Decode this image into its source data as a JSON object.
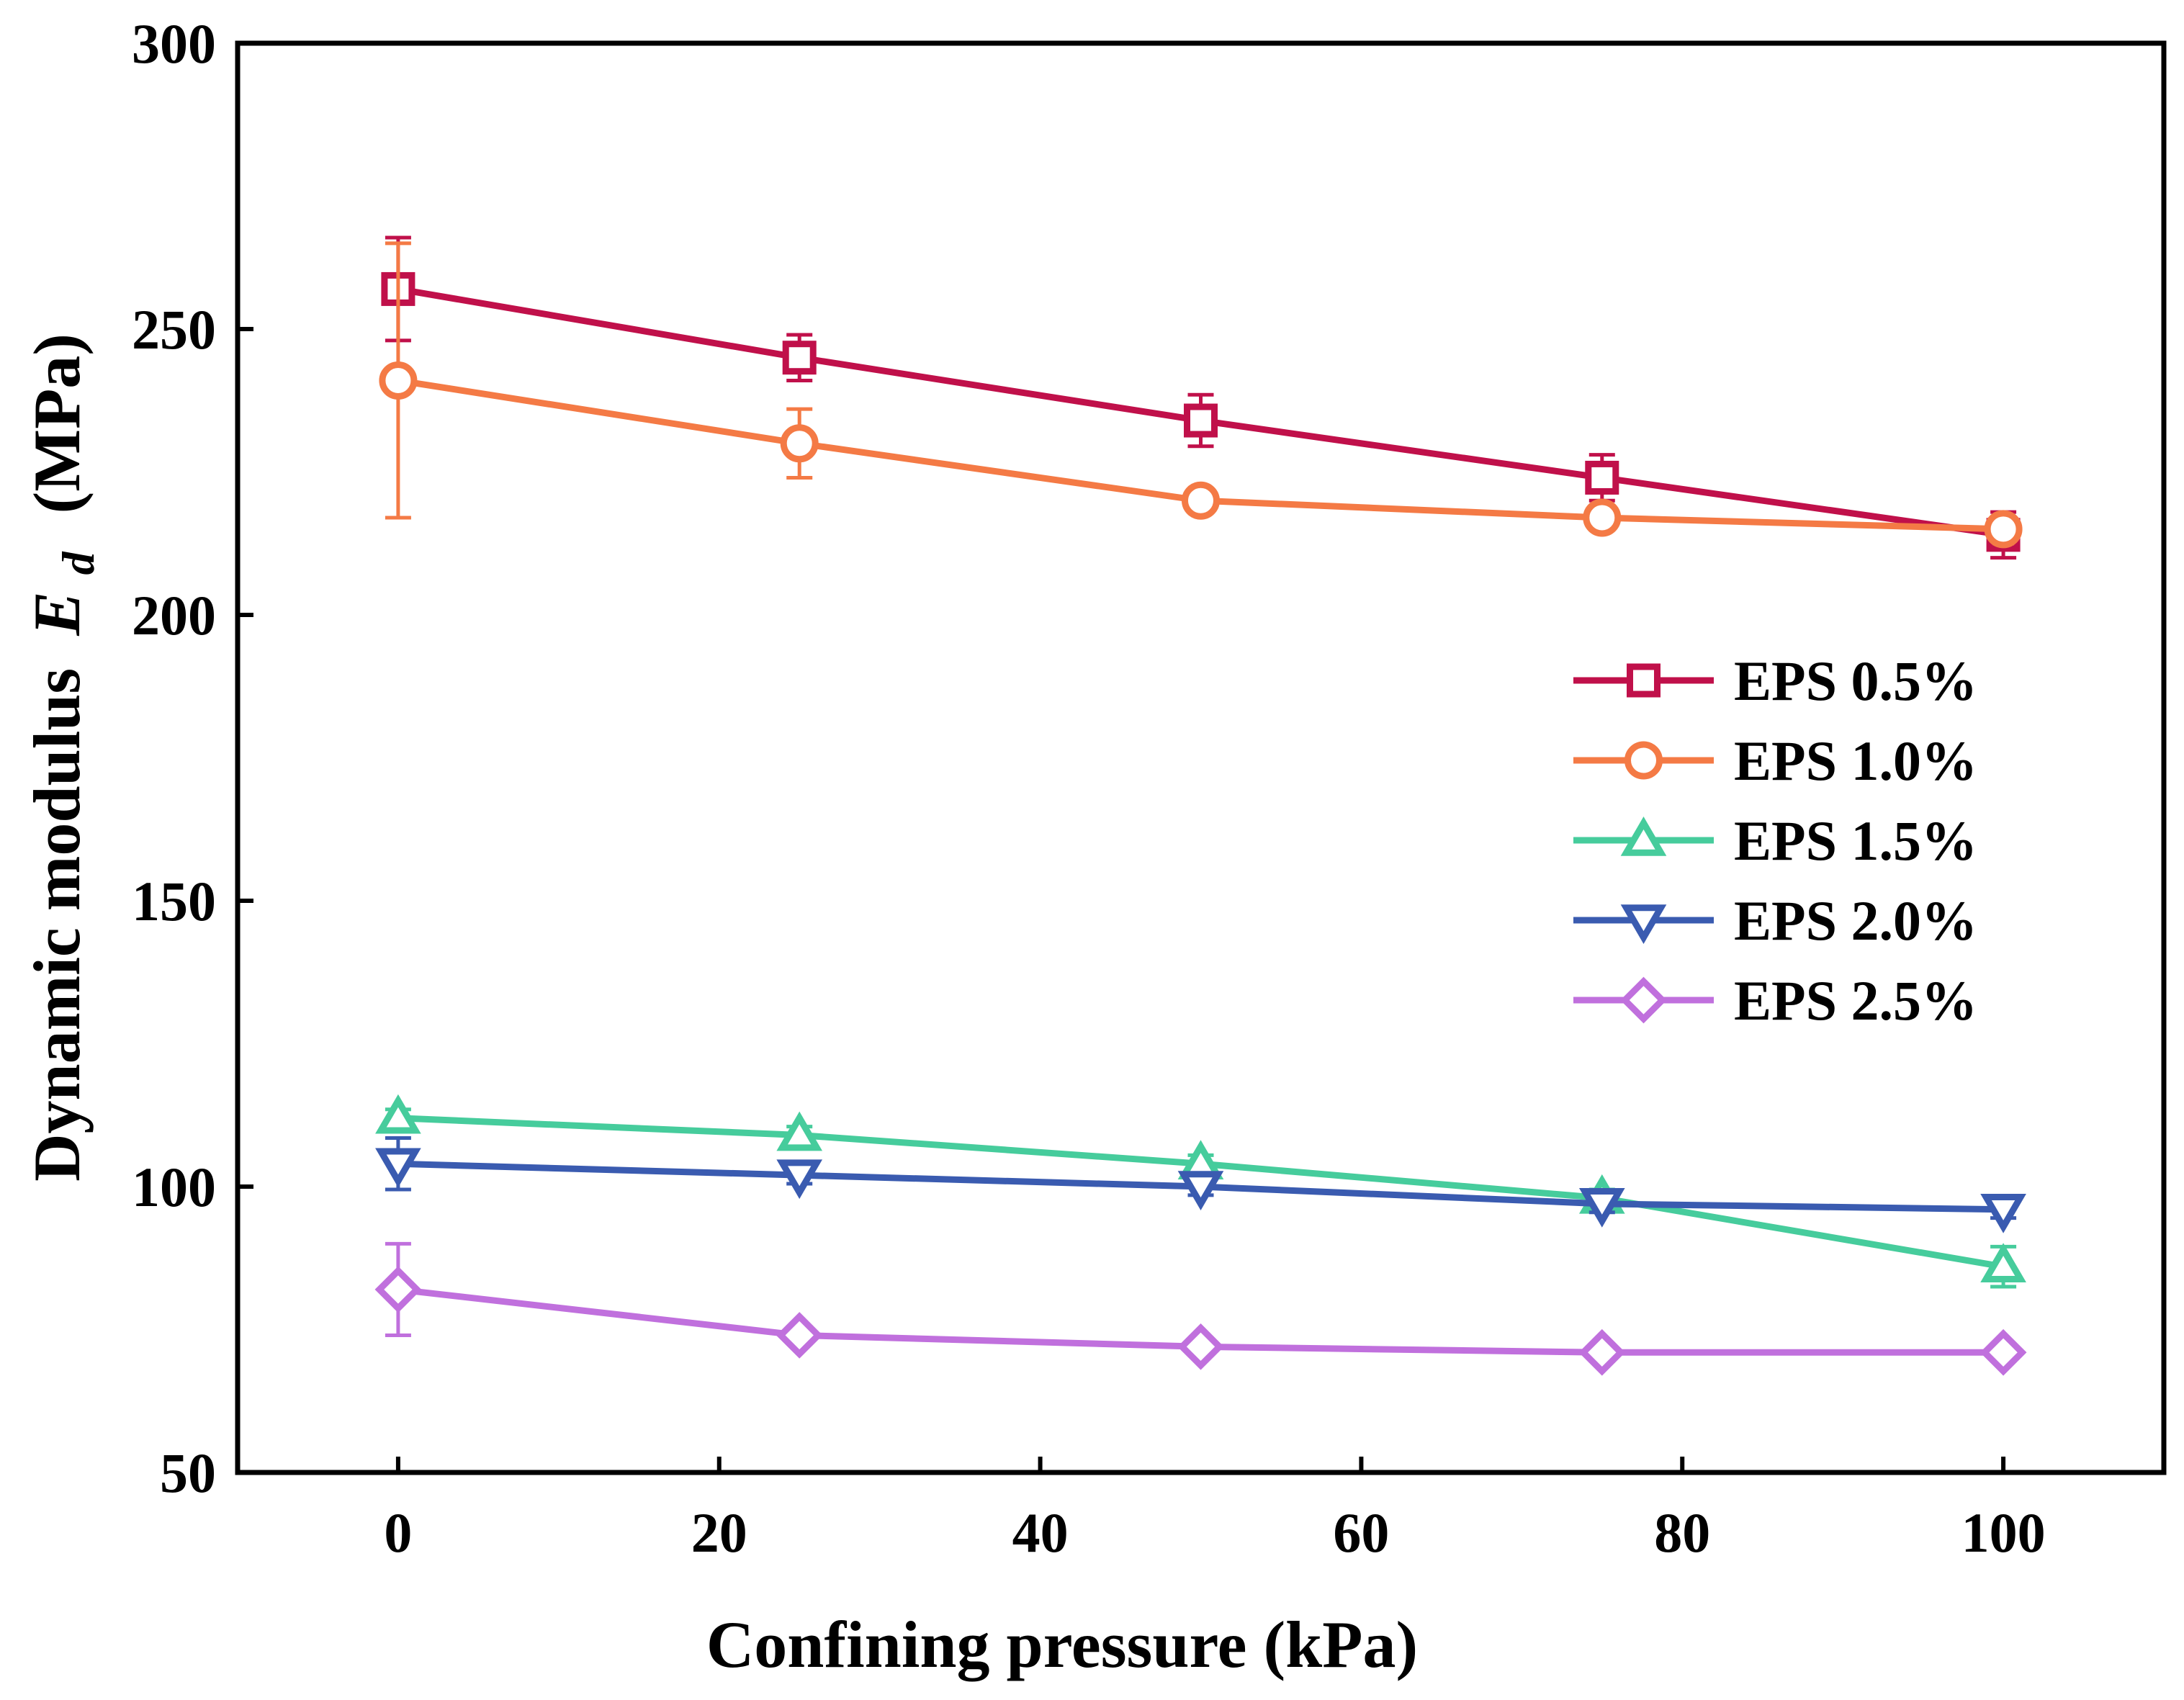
{
  "chart_data": {
    "type": "line",
    "title": "",
    "xlabel": "Confining pressure (kPa)",
    "ylabel_main": "Dynamic modulus",
    "ylabel_symbol": "E",
    "ylabel_subscript": "d",
    "ylabel_unit": "(MPa)",
    "xlim": [
      -10,
      110
    ],
    "ylim": [
      50,
      300
    ],
    "xticks": [
      0,
      20,
      40,
      60,
      80,
      100
    ],
    "yticks": [
      50,
      100,
      150,
      200,
      250,
      300
    ],
    "x": [
      0,
      25,
      50,
      75,
      100
    ],
    "legend_position": "right-middle",
    "series": [
      {
        "name": "EPS 0.5%",
        "color": "#C0104A",
        "marker": "square",
        "values": [
          257,
          245,
          234,
          224,
          214
        ],
        "errors": [
          9,
          4,
          4.5,
          4,
          4
        ]
      },
      {
        "name": "EPS 1.0%",
        "color": "#F47A45",
        "marker": "circle",
        "values": [
          241,
          230,
          220,
          217,
          215
        ],
        "errors": [
          24,
          6,
          1.5,
          2,
          2
        ]
      },
      {
        "name": "EPS 1.5%",
        "color": "#46CC9C",
        "marker": "triangle-up",
        "values": [
          112,
          109,
          104,
          98,
          86
        ],
        "errors": [
          1.5,
          1.5,
          1.5,
          1.5,
          3.5
        ]
      },
      {
        "name": "EPS 2.0%",
        "color": "#3A5BB0",
        "marker": "triangle-down",
        "values": [
          104,
          102,
          100,
          97,
          96
        ],
        "errors": [
          4.5,
          1.5,
          1.5,
          1.5,
          1.5
        ]
      },
      {
        "name": "EPS 2.5%",
        "color": "#C070DD",
        "marker": "diamond",
        "values": [
          82,
          74,
          72,
          71,
          71
        ],
        "errors": [
          8,
          1.5,
          1.5,
          1.5,
          1.5
        ]
      }
    ]
  }
}
